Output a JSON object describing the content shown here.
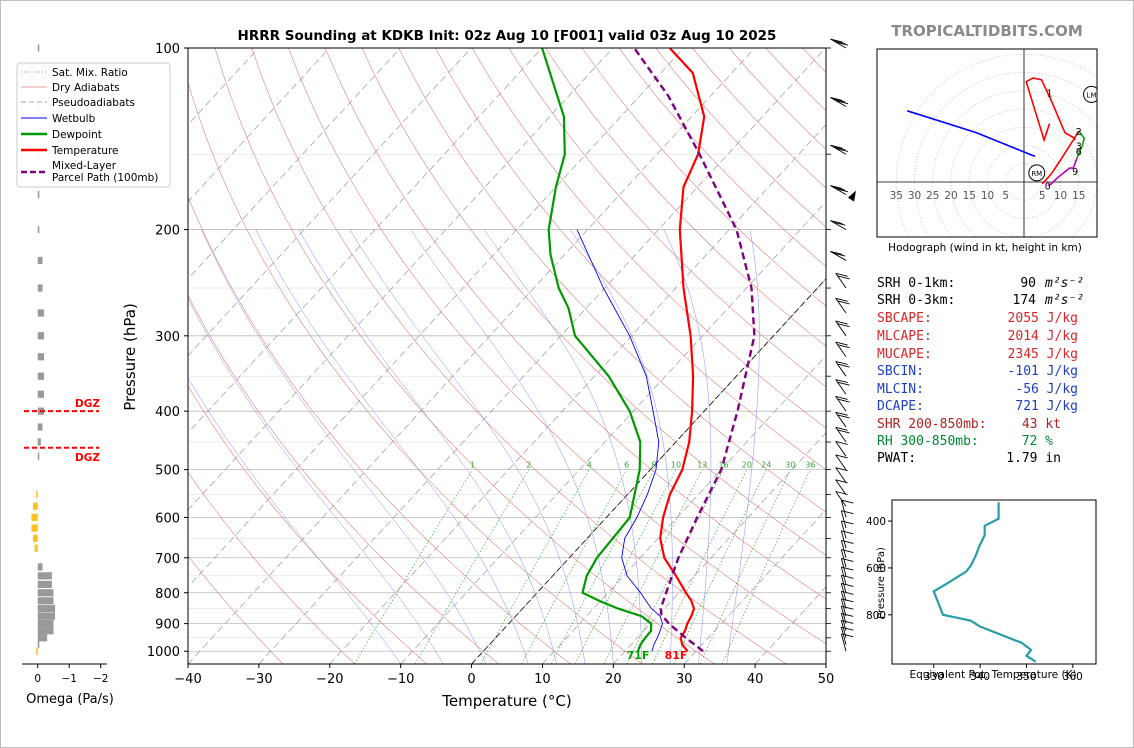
{
  "title": "HRRR Sounding at KDKB Init: 02z Aug 10 [F001] valid 03z Aug 10 2025",
  "watermark": "TROPICALTIDBITS.COM",
  "skewt": {
    "xlabel": "Temperature (°C)",
    "ylabel": "Pressure (hPa)",
    "xlim": [
      -40,
      50
    ],
    "x_ticks": [
      "−40",
      "−30",
      "−20",
      "−10",
      "0",
      "10",
      "20",
      "30",
      "40",
      "50"
    ],
    "x_tick_values": [
      -40,
      -30,
      -20,
      -10,
      0,
      10,
      20,
      30,
      40,
      50
    ],
    "ylim": [
      1050,
      100
    ],
    "p_ticks": [
      100,
      200,
      300,
      400,
      500,
      600,
      700,
      800,
      900,
      1000
    ],
    "p_tick_labels": [
      "100",
      "200",
      "300",
      "400",
      "500",
      "600",
      "700",
      "800",
      "900",
      "1000"
    ],
    "mixing_ratio_labels": [
      "1",
      "2",
      "4",
      "6",
      "8",
      "10",
      "13",
      "16",
      "20",
      "24",
      "30",
      "36"
    ],
    "mixing_ratio_values": [
      1,
      2,
      4,
      6,
      8,
      10,
      13,
      16,
      20,
      24,
      30,
      36
    ],
    "surface_temp_label": "81F",
    "surface_dew_label": "71F",
    "legend": {
      "sat_mix": "Sat. Mix. Ratio",
      "dry": "Dry Adiabats",
      "pseudo": "Pseudoadiabats",
      "wetbulb": "Wetbulb",
      "dewpoint": "Dewpoint",
      "temperature": "Temperature",
      "parcel_line1": "Mixed-Layer",
      "parcel_line2": "Parcel Path (100mb)"
    },
    "colors": {
      "temperature": "#ff0000",
      "dewpoint": "#009900",
      "wetbulb": "#0000ff",
      "parcel": "#800080"
    }
  },
  "chart_data": [
    {
      "type": "line",
      "title": "HRRR Sounding at KDKB Init: 02z Aug 10 [F001] valid 03z Aug 10 2025",
      "xlabel": "Temperature (°C)",
      "ylabel": "Pressure (hPa)",
      "xlim": [
        -40,
        50
      ],
      "ylim": [
        1050,
        100
      ],
      "log_y": true,
      "series": [
        {
          "name": "Temperature",
          "points": [
            [
              1000,
              28.8
            ],
            [
              975,
              27.2
            ],
            [
              950,
              26.1
            ],
            [
              925,
              25.8
            ],
            [
              900,
              25.2
            ],
            [
              875,
              24.8
            ],
            [
              850,
              24.2
            ],
            [
              825,
              22.8
            ],
            [
              800,
              21.0
            ],
            [
              750,
              17.4
            ],
            [
              700,
              13.4
            ],
            [
              650,
              10.3
            ],
            [
              600,
              8.0
            ],
            [
              550,
              6.0
            ],
            [
              500,
              4.5
            ],
            [
              450,
              1.9
            ],
            [
              400,
              -1.7
            ],
            [
              350,
              -6.1
            ],
            [
              300,
              -11.7
            ],
            [
              250,
              -18.9
            ],
            [
              200,
              -27.0
            ],
            [
              170,
              -32.0
            ],
            [
              150,
              -34.2
            ],
            [
              130,
              -38.2
            ],
            [
              110,
              -45.5
            ],
            [
              100,
              -52.0
            ]
          ]
        },
        {
          "name": "Dewpoint",
          "points": [
            [
              1000,
              21.8
            ],
            [
              975,
              21.3
            ],
            [
              950,
              21.1
            ],
            [
              925,
              21.0
            ],
            [
              900,
              20.1
            ],
            [
              875,
              17.8
            ],
            [
              850,
              13.5
            ],
            [
              825,
              9.8
            ],
            [
              800,
              6.4
            ],
            [
              750,
              4.8
            ],
            [
              700,
              3.9
            ],
            [
              650,
              3.6
            ],
            [
              600,
              3.3
            ],
            [
              550,
              1.0
            ],
            [
              500,
              -1.5
            ],
            [
              450,
              -5.0
            ],
            [
              400,
              -10.5
            ],
            [
              350,
              -18.0
            ],
            [
              300,
              -28.0
            ],
            [
              270,
              -32.5
            ],
            [
              250,
              -36.5
            ],
            [
              220,
              -42.0
            ],
            [
              200,
              -45.5
            ],
            [
              170,
              -50.0
            ],
            [
              150,
              -53.0
            ],
            [
              130,
              -58.0
            ],
            [
              100,
              -70.0
            ]
          ]
        },
        {
          "name": "Wetbulb",
          "points": [
            [
              1000,
              23.8
            ],
            [
              975,
              23.2
            ],
            [
              950,
              22.8
            ],
            [
              925,
              22.3
            ],
            [
              900,
              21.7
            ],
            [
              875,
              20.4
            ],
            [
              850,
              18.2
            ],
            [
              825,
              16.4
            ],
            [
              800,
              14.6
            ],
            [
              750,
              10.5
            ],
            [
              700,
              7.4
            ],
            [
              650,
              5.3
            ],
            [
              600,
              4.3
            ],
            [
              550,
              2.8
            ],
            [
              500,
              0.8
            ],
            [
              450,
              -2.4
            ],
            [
              400,
              -7.2
            ],
            [
              350,
              -12.7
            ],
            [
              300,
              -20.3
            ],
            [
              250,
              -30.2
            ],
            [
              200,
              -41.5
            ]
          ]
        },
        {
          "name": "Mixed-Layer Parcel Path (100mb)",
          "points": [
            [
              1000,
              31.0
            ],
            [
              950,
              26.8
            ],
            [
              900,
              22.6
            ],
            [
              870,
              20.4
            ],
            [
              850,
              19.5
            ],
            [
              800,
              18.2
            ],
            [
              700,
              15.4
            ],
            [
              600,
              12.8
            ],
            [
              500,
              10.0
            ],
            [
              400,
              4.7
            ],
            [
              300,
              -2.7
            ],
            [
              250,
              -9.3
            ],
            [
              200,
              -19.0
            ],
            [
              150,
              -34.0
            ],
            [
              120,
              -46.0
            ],
            [
              100,
              -57.0
            ]
          ]
        }
      ]
    },
    {
      "type": "bar",
      "title": "",
      "xlabel": "Omega (Pa/s)",
      "ylabel": "",
      "xlim": [
        0.5,
        -2.2
      ],
      "x_ticks": [
        "0",
        "−1",
        "−2"
      ],
      "x_tick_values": [
        0,
        -1,
        -2
      ],
      "bar_colors": {
        "upward": "#999999",
        "downward": "#ffc11a"
      },
      "levels": [
        1000,
        975,
        950,
        925,
        900,
        875,
        850,
        825,
        800,
        775,
        750,
        725,
        700,
        675,
        650,
        625,
        600,
        575,
        550,
        525,
        500,
        475,
        450,
        425,
        400,
        375,
        350,
        325,
        300,
        275,
        250,
        225,
        200,
        175,
        150,
        125,
        100
      ],
      "values": [
        0.05,
        -0.05,
        -0.3,
        -0.5,
        -0.5,
        -0.55,
        -0.55,
        -0.5,
        -0.5,
        -0.45,
        -0.45,
        -0.15,
        0.0,
        0.1,
        0.15,
        0.2,
        0.2,
        0.15,
        0.05,
        0.0,
        0.0,
        -0.05,
        -0.1,
        -0.15,
        -0.2,
        -0.2,
        -0.2,
        -0.2,
        -0.2,
        -0.2,
        -0.15,
        -0.15,
        -0.05,
        -0.05,
        -0.05,
        -0.05,
        -0.05
      ],
      "dgz_label": "DGZ",
      "dgz_levels": [
        400,
        460
      ]
    },
    {
      "type": "line",
      "title": "Hodograph (wind in kt, height in km)",
      "xlabel": "",
      "ylabel": "",
      "rings_kt": [
        5,
        10,
        15,
        20,
        25,
        30,
        35
      ],
      "x_tick_labels": [
        "35",
        "30",
        "25",
        "20",
        "15",
        "10",
        "5",
        "5",
        "10",
        "15"
      ],
      "x_tick_values": [
        -35,
        -30,
        -25,
        -20,
        -15,
        -10,
        -5,
        5,
        10,
        15
      ],
      "height_labels": [
        "0",
        "1",
        "2",
        "3",
        "6",
        "9"
      ],
      "markers": [
        "RM",
        "LM"
      ],
      "series": [
        {
          "name": "0-1 km",
          "points": [
            [
              5.0,
              -0.5
            ],
            [
              6.6,
              1.2
            ],
            [
              8.0,
              3.0
            ]
          ]
        },
        {
          "name": "1-3 km",
          "points": [
            [
              8.0,
              3.0
            ],
            [
              10.0,
              6.0
            ],
            [
              13.5,
              11.5
            ],
            [
              15.0,
              14.0
            ]
          ]
        },
        {
          "name": "3-6 km",
          "points": [
            [
              15.0,
              14.0
            ],
            [
              16.5,
              12.0
            ],
            [
              16.0,
              10.0
            ],
            [
              14.5,
              6.5
            ]
          ]
        },
        {
          "name": "6-9 km",
          "points": [
            [
              14.5,
              6.5
            ],
            [
              13.5,
              3.8
            ],
            [
              12.5,
              3.8
            ],
            [
              9.0,
              1.0
            ],
            [
              7.5,
              -0.5
            ],
            [
              6.5,
              -1.0
            ]
          ]
        },
        {
          "name": "9+ km",
          "points": [
            [
              7.0,
              16.0
            ],
            [
              5.5,
              11.5
            ],
            [
              3.5,
              18.0
            ],
            [
              0.6,
              27.5
            ],
            [
              2.5,
              28.5
            ],
            [
              4.8,
              28.0
            ],
            [
              7.4,
              22.5
            ],
            [
              11.2,
              13.5
            ],
            [
              13.8,
              12.0
            ],
            [
              14.0,
              11.5
            ]
          ]
        },
        {
          "name": "upper",
          "points": [
            [
              3.0,
              7.0
            ],
            [
              -13.0,
              13.5
            ],
            [
              -32.0,
              19.5
            ]
          ]
        }
      ],
      "rm": [
        3.5,
        2.5
      ],
      "lm": [
        18.5,
        24.0
      ],
      "height_points": [
        [
          6.5,
          -1.0
        ],
        [
          7.0,
          24.5
        ],
        [
          15.0,
          14.0
        ],
        [
          15.0,
          10.0
        ],
        [
          15.0,
          8.5
        ],
        [
          14.0,
          3.0
        ]
      ]
    },
    {
      "type": "line",
      "title": "",
      "xlabel": "Equivalent Pot. Temperature (K)",
      "ylabel": "Pressure (hPa)",
      "x_ticks": [
        "330",
        "340",
        "350",
        "360"
      ],
      "x_tick_values": [
        330,
        340,
        350,
        360
      ],
      "y_ticks": [
        "400",
        "600",
        "800"
      ],
      "y_tick_values": [
        400,
        600,
        800
      ],
      "xlim": [
        321,
        365
      ],
      "ylim": [
        1010,
        310
      ],
      "series": [
        {
          "name": "Theta-e",
          "points": [
            [
              352,
              1000
            ],
            [
              350,
              975
            ],
            [
              351,
              950
            ],
            [
              349,
              920
            ],
            [
              340,
              850
            ],
            [
              338,
              825
            ],
            [
              332,
              800
            ],
            [
              331,
              750
            ],
            [
              330,
              700
            ],
            [
              333,
              665
            ],
            [
              335,
              640
            ],
            [
              337,
              615
            ],
            [
              338,
              590
            ],
            [
              339,
              550
            ],
            [
              340,
              500
            ],
            [
              341,
              460
            ],
            [
              341,
              420
            ],
            [
              344,
              390
            ],
            [
              344,
              350
            ],
            [
              344,
              320
            ]
          ]
        }
      ]
    }
  ],
  "indices": {
    "srh01_label": "SRH 0-1km:",
    "srh01_value": "90",
    "srh03_label": "SRH 0-3km:",
    "srh03_value": "174",
    "srh_unit": "m²s⁻²",
    "sbcape_label": "SBCAPE:",
    "sbcape_value": "2055 J/kg",
    "mlcape_label": "MLCAPE:",
    "mlcape_value": "2014 J/kg",
    "mucape_label": "MUCAPE:",
    "mucape_value": "2345 J/kg",
    "sbcin_label": "SBCIN:",
    "sbcin_value": "-101 J/kg",
    "mlcin_label": "MLCIN:",
    "mlcin_value": "-56 J/kg",
    "dcape_label": "DCAPE:",
    "dcape_value": "721 J/kg",
    "shr_label": "SHR 200-850mb:",
    "shr_value": "43 kt",
    "rh_label": "RH 300-850mb:",
    "rh_value": "72 %",
    "pwat_label": "PWAT:",
    "pwat_value": "1.79 in",
    "colors": {
      "black": "#000000",
      "red": "#d62728",
      "blue": "#1f3fbf",
      "green": "#008833"
    }
  }
}
